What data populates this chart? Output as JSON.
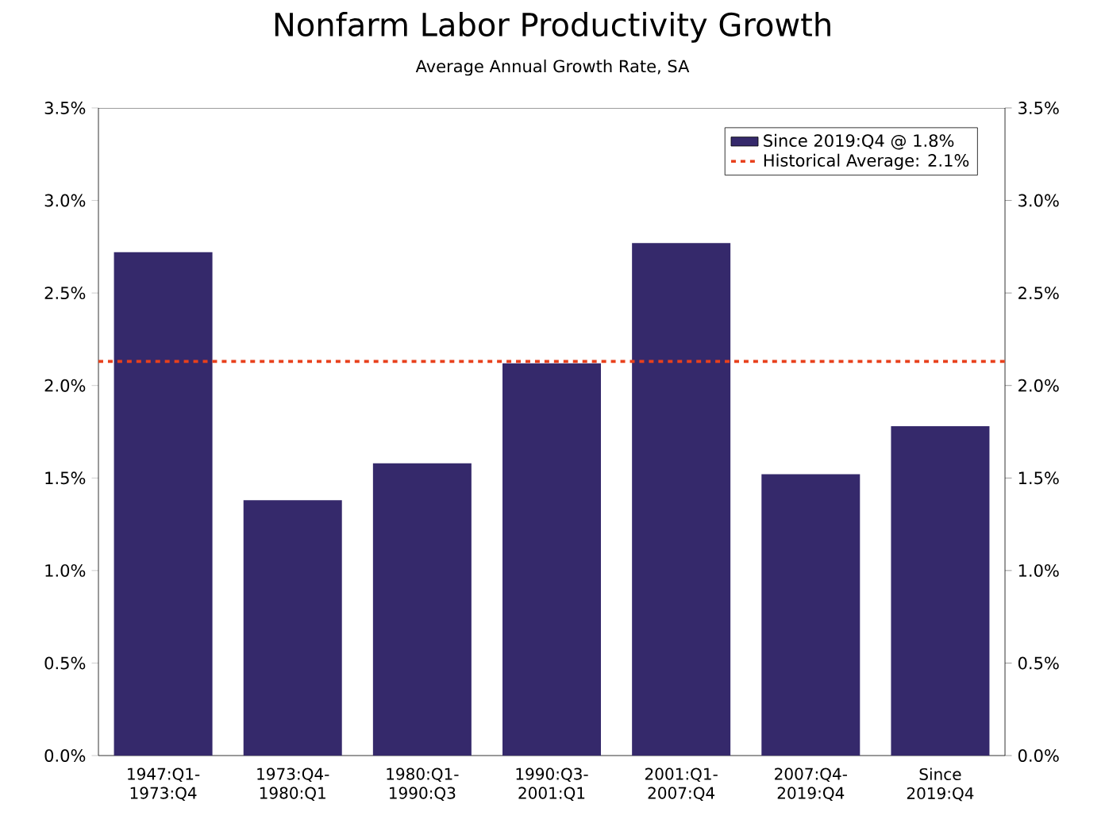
{
  "chart_data": {
    "type": "bar",
    "title": "Nonfarm Labor Productivity Growth",
    "subtitle": "Average Annual Growth Rate, SA",
    "categories": [
      "1947:Q1-1973:Q4",
      "1973:Q4-1980:Q1",
      "1980:Q1-1990:Q3",
      "1990:Q3-2001:Q1",
      "2001:Q1-2007:Q4",
      "2007:Q4-2019:Q4",
      "Since 2019:Q4"
    ],
    "series": [
      {
        "name": "Since 2019:Q4 @ 1.8%",
        "color": "#35296b",
        "values": [
          2.72,
          1.38,
          1.58,
          2.12,
          2.77,
          1.52,
          1.78
        ]
      }
    ],
    "ref_lines": [
      {
        "axis": "y",
        "value": 2.13,
        "label": "Historical Average: 2.1%",
        "color": "#e8401c",
        "line_style": "dashed"
      }
    ],
    "ylim": [
      0,
      3.5
    ],
    "yticks": [
      {
        "value": 0,
        "label": "0.0%"
      },
      {
        "value": 0.5,
        "label": "0.5%"
      },
      {
        "value": 1,
        "label": "1.0%"
      },
      {
        "value": 1.5,
        "label": "1.5%"
      },
      {
        "value": 2,
        "label": "2.0%"
      },
      {
        "value": 2.5,
        "label": "2.5%"
      },
      {
        "value": 3,
        "label": "3.0%"
      },
      {
        "value": 3.5,
        "label": "3.5%"
      }
    ],
    "y2lim": [
      0,
      3.5
    ],
    "y2ticks": [
      {
        "value": 0,
        "label": "0.0%"
      },
      {
        "value": 0.5,
        "label": "0.5%"
      },
      {
        "value": 1,
        "label": "1.0%"
      },
      {
        "value": 1.5,
        "label": "1.5%"
      },
      {
        "value": 2,
        "label": "2.0%"
      },
      {
        "value": 2.5,
        "label": "2.5%"
      },
      {
        "value": 3,
        "label": "3.0%"
      },
      {
        "value": 3.5,
        "label": "3.5%"
      }
    ],
    "legend": "top right",
    "grid": false
  }
}
